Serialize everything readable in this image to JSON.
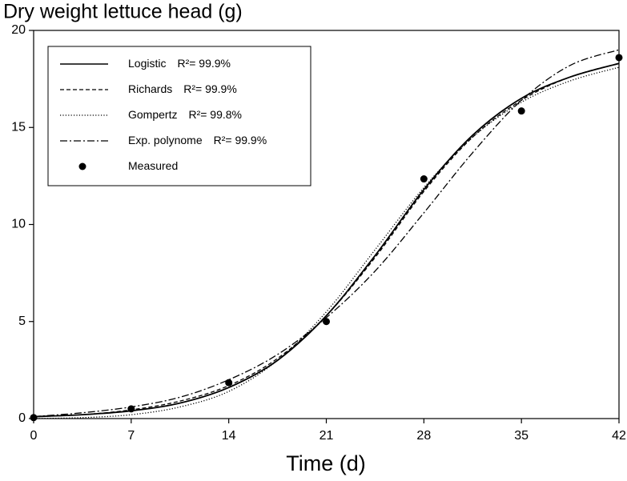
{
  "chart_data": {
    "type": "line",
    "title": "Dry weight lettuce head (g)",
    "x_label": "Time (d)",
    "x": [
      0,
      3.5,
      7,
      10.5,
      14,
      17.5,
      21,
      24.5,
      28,
      31.5,
      35,
      38.5,
      42
    ],
    "series": [
      {
        "name": "Logistic",
        "r_squared": "R²= 99.9%",
        "color": "#000000",
        "style": "solid",
        "values": [
          0.1,
          0.2,
          0.4,
          0.8,
          1.6,
          3.0,
          5.3,
          8.4,
          11.8,
          14.6,
          16.5,
          17.6,
          18.3
        ]
      },
      {
        "name": "Richards",
        "r_squared": "R²= 99.9%",
        "color": "#000000",
        "style": "dashed",
        "values": [
          0.1,
          0.2,
          0.45,
          0.9,
          1.7,
          3.1,
          5.3,
          8.3,
          11.7,
          14.5,
          16.4,
          17.6,
          18.3
        ]
      },
      {
        "name": "Gompertz",
        "r_squared": "R²= 99.8%",
        "color": "#000000",
        "style": "dotted",
        "values": [
          0.0,
          0.05,
          0.2,
          0.6,
          1.4,
          3.0,
          5.5,
          8.7,
          11.9,
          14.5,
          16.3,
          17.4,
          18.1
        ]
      },
      {
        "name": "Exp. polynome",
        "r_squared": "R²= 99.9%",
        "color": "#000000",
        "style": "dashdot",
        "values": [
          0.1,
          0.3,
          0.6,
          1.1,
          2.0,
          3.3,
          5.2,
          7.6,
          10.6,
          13.7,
          16.4,
          18.2,
          19.0
        ]
      },
      {
        "name": "Measured",
        "color": "#000000",
        "style": "marker",
        "x": [
          0,
          7,
          14,
          21,
          28,
          35,
          42
        ],
        "values": [
          0.05,
          0.5,
          1.85,
          5.0,
          12.35,
          15.85,
          18.6
        ]
      }
    ],
    "xlim": [
      0,
      42
    ],
    "xticks": [
      0,
      7,
      14,
      21,
      28,
      35,
      42
    ],
    "ylim": [
      0,
      20
    ],
    "yticks": [
      0,
      5,
      10,
      15,
      20
    ],
    "legend": "upper left"
  }
}
